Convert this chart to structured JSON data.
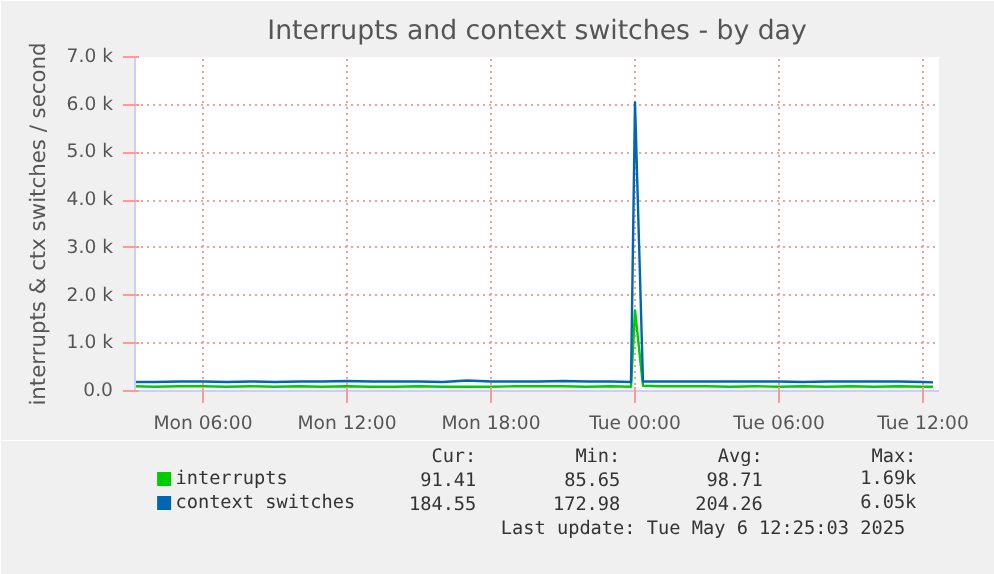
{
  "chart_data": {
    "type": "line",
    "title": "Interrupts and context switches - by day",
    "ylabel": "interrupts & ctx switches / second",
    "x": [
      "2025-05-05T03:10",
      "2025-05-05T04:00",
      "2025-05-05T05:00",
      "2025-05-05T06:00",
      "2025-05-05T07:00",
      "2025-05-05T08:00",
      "2025-05-05T09:00",
      "2025-05-05T10:00",
      "2025-05-05T11:00",
      "2025-05-05T12:00",
      "2025-05-05T13:00",
      "2025-05-05T14:00",
      "2025-05-05T15:00",
      "2025-05-05T16:00",
      "2025-05-05T17:00",
      "2025-05-05T18:00",
      "2025-05-05T19:00",
      "2025-05-05T20:00",
      "2025-05-05T21:00",
      "2025-05-05T22:00",
      "2025-05-05T23:00",
      "2025-05-05T23:50",
      "2025-05-06T00:00",
      "2025-05-06T00:20",
      "2025-05-06T01:00",
      "2025-05-06T02:00",
      "2025-05-06T03:00",
      "2025-05-06T04:00",
      "2025-05-06T05:00",
      "2025-05-06T06:00",
      "2025-05-06T07:00",
      "2025-05-06T08:00",
      "2025-05-06T09:00",
      "2025-05-06T10:00",
      "2025-05-06T11:00",
      "2025-05-06T12:00",
      "2025-05-06T12:25"
    ],
    "series": [
      {
        "name": "interrupts",
        "color": "#00cc00",
        "values": [
          100,
          90,
          100,
          100,
          90,
          100,
          90,
          100,
          90,
          100,
          90,
          90,
          100,
          90,
          90,
          90,
          100,
          100,
          100,
          90,
          100,
          90,
          1690,
          110,
          100,
          100,
          100,
          90,
          100,
          90,
          100,
          90,
          100,
          90,
          100,
          90,
          90
        ]
      },
      {
        "name": "context switches",
        "color": "#0066b3",
        "values": [
          190,
          190,
          200,
          200,
          190,
          200,
          190,
          200,
          200,
          210,
          200,
          200,
          200,
          190,
          220,
          200,
          200,
          200,
          210,
          200,
          200,
          190,
          6050,
          200,
          200,
          200,
          200,
          200,
          200,
          200,
          190,
          200,
          200,
          200,
          200,
          190,
          180
        ]
      }
    ],
    "xlim": [
      "2025-05-05T03:10",
      "2025-05-06T12:40"
    ],
    "xticks": [
      {
        "value": "2025-05-05T06:00",
        "label": "Mon 06:00"
      },
      {
        "value": "2025-05-05T12:00",
        "label": "Mon 12:00"
      },
      {
        "value": "2025-05-05T18:00",
        "label": "Mon 18:00"
      },
      {
        "value": "2025-05-06T00:00",
        "label": "Tue 00:00"
      },
      {
        "value": "2025-05-06T06:00",
        "label": "Tue 06:00"
      },
      {
        "value": "2025-05-06T12:00",
        "label": "Tue 12:00"
      }
    ],
    "ylim": [
      0,
      7000
    ],
    "yticks": [
      {
        "value": 0,
        "label": "0.0"
      },
      {
        "value": 1000,
        "label": "1.0 k"
      },
      {
        "value": 2000,
        "label": "2.0 k"
      },
      {
        "value": 3000,
        "label": "3.0 k"
      },
      {
        "value": 4000,
        "label": "4.0 k"
      },
      {
        "value": 5000,
        "label": "5.0 k"
      },
      {
        "value": 6000,
        "label": "6.0 k"
      },
      {
        "value": 7000,
        "label": "7.0 k"
      }
    ],
    "grid": true,
    "legend": "bottom left",
    "marker": "none",
    "line_style": "solid",
    "annotations": [
      "Cur:",
      "Min:",
      "Avg:",
      "Max:",
      "91.41",
      "85.65",
      "98.71",
      "1.69k",
      "184.55",
      "172.98",
      "204.26",
      "6.05k",
      "Last update: Tue May  6 12:25:03 2025"
    ]
  }
}
